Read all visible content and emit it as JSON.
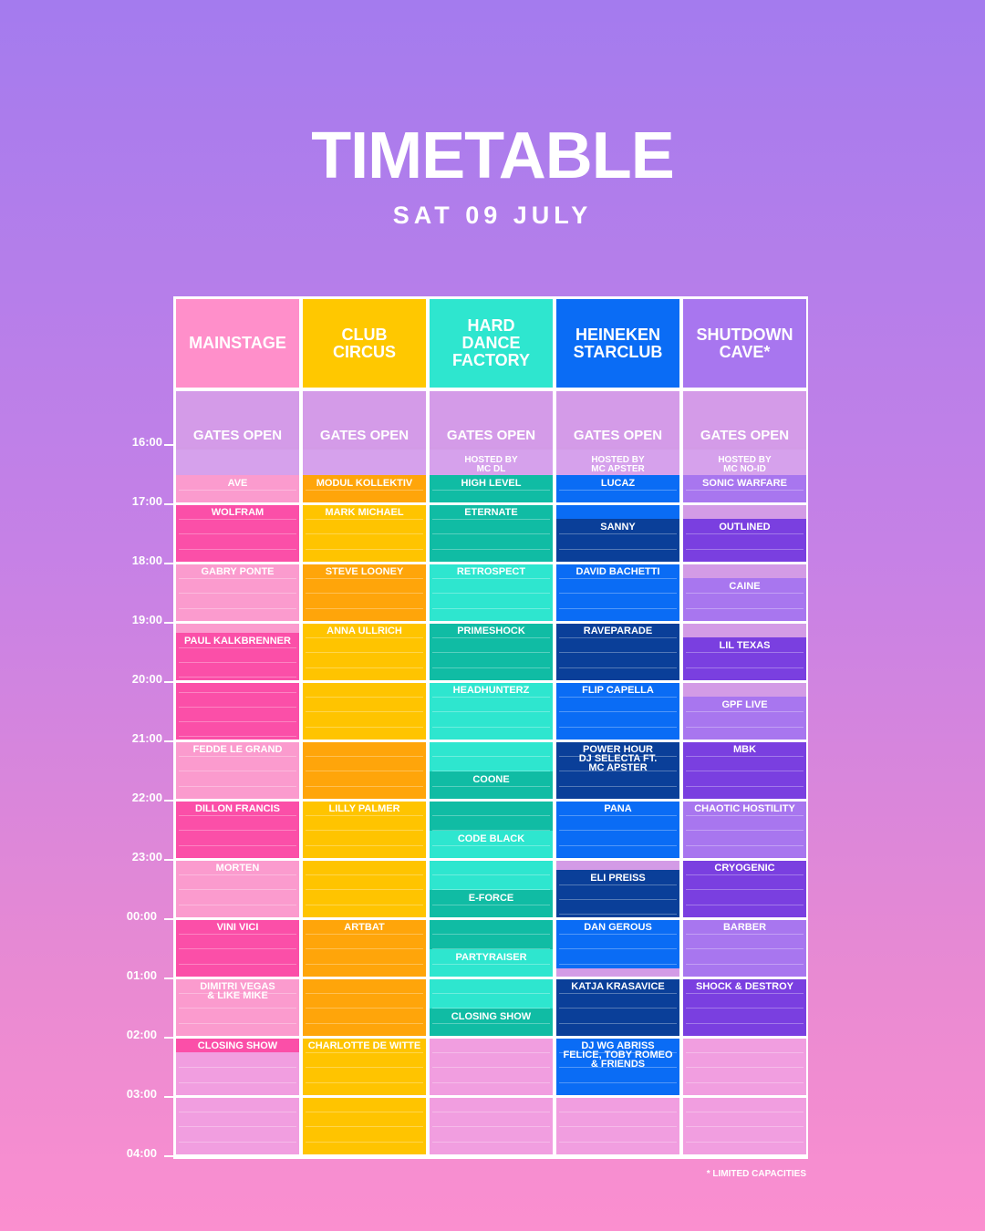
{
  "title": "TIMETABLE",
  "date": "SAT 09 JULY",
  "footnote": "* LIMITED CAPACITIES",
  "times": [
    "16:00",
    "17:00",
    "18:00",
    "19:00",
    "20:00",
    "21:00",
    "22:00",
    "23:00",
    "00:00",
    "01:00",
    "02:00",
    "03:00",
    "04:00"
  ],
  "stages": [
    {
      "name": "MAINSTAGE",
      "color": "#ff8fca",
      "light": "#fb9bce",
      "dark": "#fb4fa8",
      "light_text": "#8f2f63"
    },
    {
      "name": "CLUB\nCIRCUS",
      "color": "#ffc800",
      "light": "#ffc400",
      "dark": "#ffa50a",
      "light_text": "#ffffff"
    },
    {
      "name": "HARD\nDANCE\nFACTORY",
      "color": "#2ee6cf",
      "light": "#2ee6cf",
      "dark": "#10bca4",
      "light_text": "#ffffff"
    },
    {
      "name": "HEINEKEN\nSTARCLUB",
      "color": "#0a6cf5",
      "light": "#0a6cf5",
      "dark": "#0a3f99",
      "light_text": "#ffffff"
    },
    {
      "name": "SHUTDOWN\nCAVE*",
      "color": "#a876ef",
      "light": "#a876ef",
      "dark": "#7a3fe0",
      "light_text": "#ffffff"
    }
  ],
  "gates_label": "GATES OPEN",
  "schedule": [
    [
      {
        "label": "AVE",
        "start": "16:30",
        "end": "17:00",
        "tone": "light"
      },
      {
        "label": "WOLFRAM",
        "start": "17:00",
        "end": "18:00",
        "tone": "dark"
      },
      {
        "label": "GABRY PONTE",
        "start": "18:00",
        "end": "19:10",
        "tone": "light"
      },
      {
        "label": "PAUL KALKBRENNER",
        "start": "19:10",
        "end": "21:00",
        "tone": "dark"
      },
      {
        "label": "FEDDE LE GRAND",
        "start": "21:00",
        "end": "22:00",
        "tone": "light"
      },
      {
        "label": "DILLON FRANCIS",
        "start": "22:00",
        "end": "23:00",
        "tone": "dark"
      },
      {
        "label": "MORTEN",
        "start": "23:00",
        "end": "00:00",
        "tone": "light"
      },
      {
        "label": "VINI VICI",
        "start": "00:00",
        "end": "01:00",
        "tone": "dark"
      },
      {
        "label": "DIMITRI VEGAS\n& LIKE MIKE",
        "start": "01:00",
        "end": "02:00",
        "tone": "light"
      },
      {
        "label": "CLOSING SHOW",
        "start": "02:00",
        "end": "02:15",
        "tone": "dark"
      },
      {
        "label": "",
        "start": "02:15",
        "end": "04:00",
        "tone": "empty"
      }
    ],
    [
      {
        "label": "MODUL KOLLEKTIV",
        "start": "16:30",
        "end": "17:00",
        "tone": "dark"
      },
      {
        "label": "MARK MICHAEL",
        "start": "17:00",
        "end": "18:00",
        "tone": "light"
      },
      {
        "label": "STEVE LOONEY",
        "start": "18:00",
        "end": "19:00",
        "tone": "dark"
      },
      {
        "label": "ANNA ULLRICH",
        "start": "19:00",
        "end": "21:00",
        "tone": "light"
      },
      {
        "label": "",
        "start": "21:00",
        "end": "22:00",
        "tone": "dark"
      },
      {
        "label": "LILLY PALMER",
        "start": "22:00",
        "end": "00:00",
        "tone": "light"
      },
      {
        "label": "ARTBAT",
        "start": "00:00",
        "end": "02:00",
        "tone": "dark"
      },
      {
        "label": "CHARLOTTE DE WITTE",
        "start": "02:00",
        "end": "04:00",
        "tone": "light"
      }
    ],
    [
      {
        "label": "HIGH LEVEL",
        "start": "16:30",
        "end": "17:00",
        "tone": "dark"
      },
      {
        "label": "ETERNATE",
        "start": "17:00",
        "end": "18:00",
        "tone": "dark"
      },
      {
        "label": "RETROSPECT",
        "start": "18:00",
        "end": "19:00",
        "tone": "light"
      },
      {
        "label": "PRIMESHOCK",
        "start": "19:00",
        "end": "20:00",
        "tone": "dark"
      },
      {
        "label": "HEADHUNTERZ",
        "start": "20:00",
        "end": "21:30",
        "tone": "light"
      },
      {
        "label": "COONE",
        "start": "21:30",
        "end": "22:30",
        "tone": "dark"
      },
      {
        "label": "CODE BLACK",
        "start": "22:30",
        "end": "23:30",
        "tone": "light"
      },
      {
        "label": "E-FORCE",
        "start": "23:30",
        "end": "00:30",
        "tone": "dark"
      },
      {
        "label": "PARTYRAISER",
        "start": "00:30",
        "end": "01:30",
        "tone": "light"
      },
      {
        "label": "CLOSING SHOW",
        "start": "01:30",
        "end": "02:00",
        "tone": "dark"
      },
      {
        "label": "",
        "start": "02:00",
        "end": "04:00",
        "tone": "empty"
      }
    ],
    [
      {
        "label": "LUCAZ",
        "start": "16:30",
        "end": "17:15",
        "tone": "light"
      },
      {
        "label": "SANNY",
        "start": "17:15",
        "end": "18:00",
        "tone": "dark"
      },
      {
        "label": "DAVID BACHETTI",
        "start": "18:00",
        "end": "19:00",
        "tone": "light"
      },
      {
        "label": "RAVEPARADE",
        "start": "19:00",
        "end": "20:00",
        "tone": "dark"
      },
      {
        "label": "FLIP CAPELLA",
        "start": "20:00",
        "end": "21:00",
        "tone": "light"
      },
      {
        "label": "POWER HOUR\nDJ SELECTA FT.\nMC APSTER",
        "start": "21:00",
        "end": "22:00",
        "tone": "dark"
      },
      {
        "label": "PANA",
        "start": "22:00",
        "end": "23:00",
        "tone": "light"
      },
      {
        "label": "ELI PREISS",
        "start": "23:10",
        "end": "00:00",
        "tone": "dark"
      },
      {
        "label": "DAN GEROUS",
        "start": "00:00",
        "end": "00:50",
        "tone": "light"
      },
      {
        "label": "KATJA KRASAVICE",
        "start": "01:00",
        "end": "02:00",
        "tone": "dark"
      },
      {
        "label": "DJ WG ABRISS\nFELICE, TOBY ROMEO\n& FRIENDS",
        "start": "02:00",
        "end": "03:00",
        "tone": "light"
      },
      {
        "label": "",
        "start": "03:00",
        "end": "04:00",
        "tone": "empty"
      }
    ],
    [
      {
        "label": "SONIC WARFARE",
        "start": "16:30",
        "end": "17:00",
        "tone": "light"
      },
      {
        "label": "OUTLINED",
        "start": "17:15",
        "end": "18:00",
        "tone": "dark"
      },
      {
        "label": "CAINE",
        "start": "18:15",
        "end": "19:00",
        "tone": "light"
      },
      {
        "label": "LIL TEXAS",
        "start": "19:15",
        "end": "20:00",
        "tone": "dark"
      },
      {
        "label": "GPF LIVE",
        "start": "20:15",
        "end": "21:00",
        "tone": "light"
      },
      {
        "label": "MBK",
        "start": "21:00",
        "end": "22:00",
        "tone": "dark"
      },
      {
        "label": "CHAOTIC HOSTILITY",
        "start": "22:00",
        "end": "23:00",
        "tone": "light"
      },
      {
        "label": "CRYOGENIC",
        "start": "23:00",
        "end": "00:00",
        "tone": "dark"
      },
      {
        "label": "BARBER",
        "start": "00:00",
        "end": "01:00",
        "tone": "light"
      },
      {
        "label": "SHOCK & DESTROY",
        "start": "01:00",
        "end": "02:00",
        "tone": "dark"
      },
      {
        "label": "",
        "start": "02:00",
        "end": "04:00",
        "tone": "empty"
      }
    ]
  ],
  "hosts": [
    null,
    null,
    "HOSTED BY\nMC DL",
    "HOSTED BY\nMC APSTER",
    "HOSTED BY\nMC NO-ID"
  ]
}
